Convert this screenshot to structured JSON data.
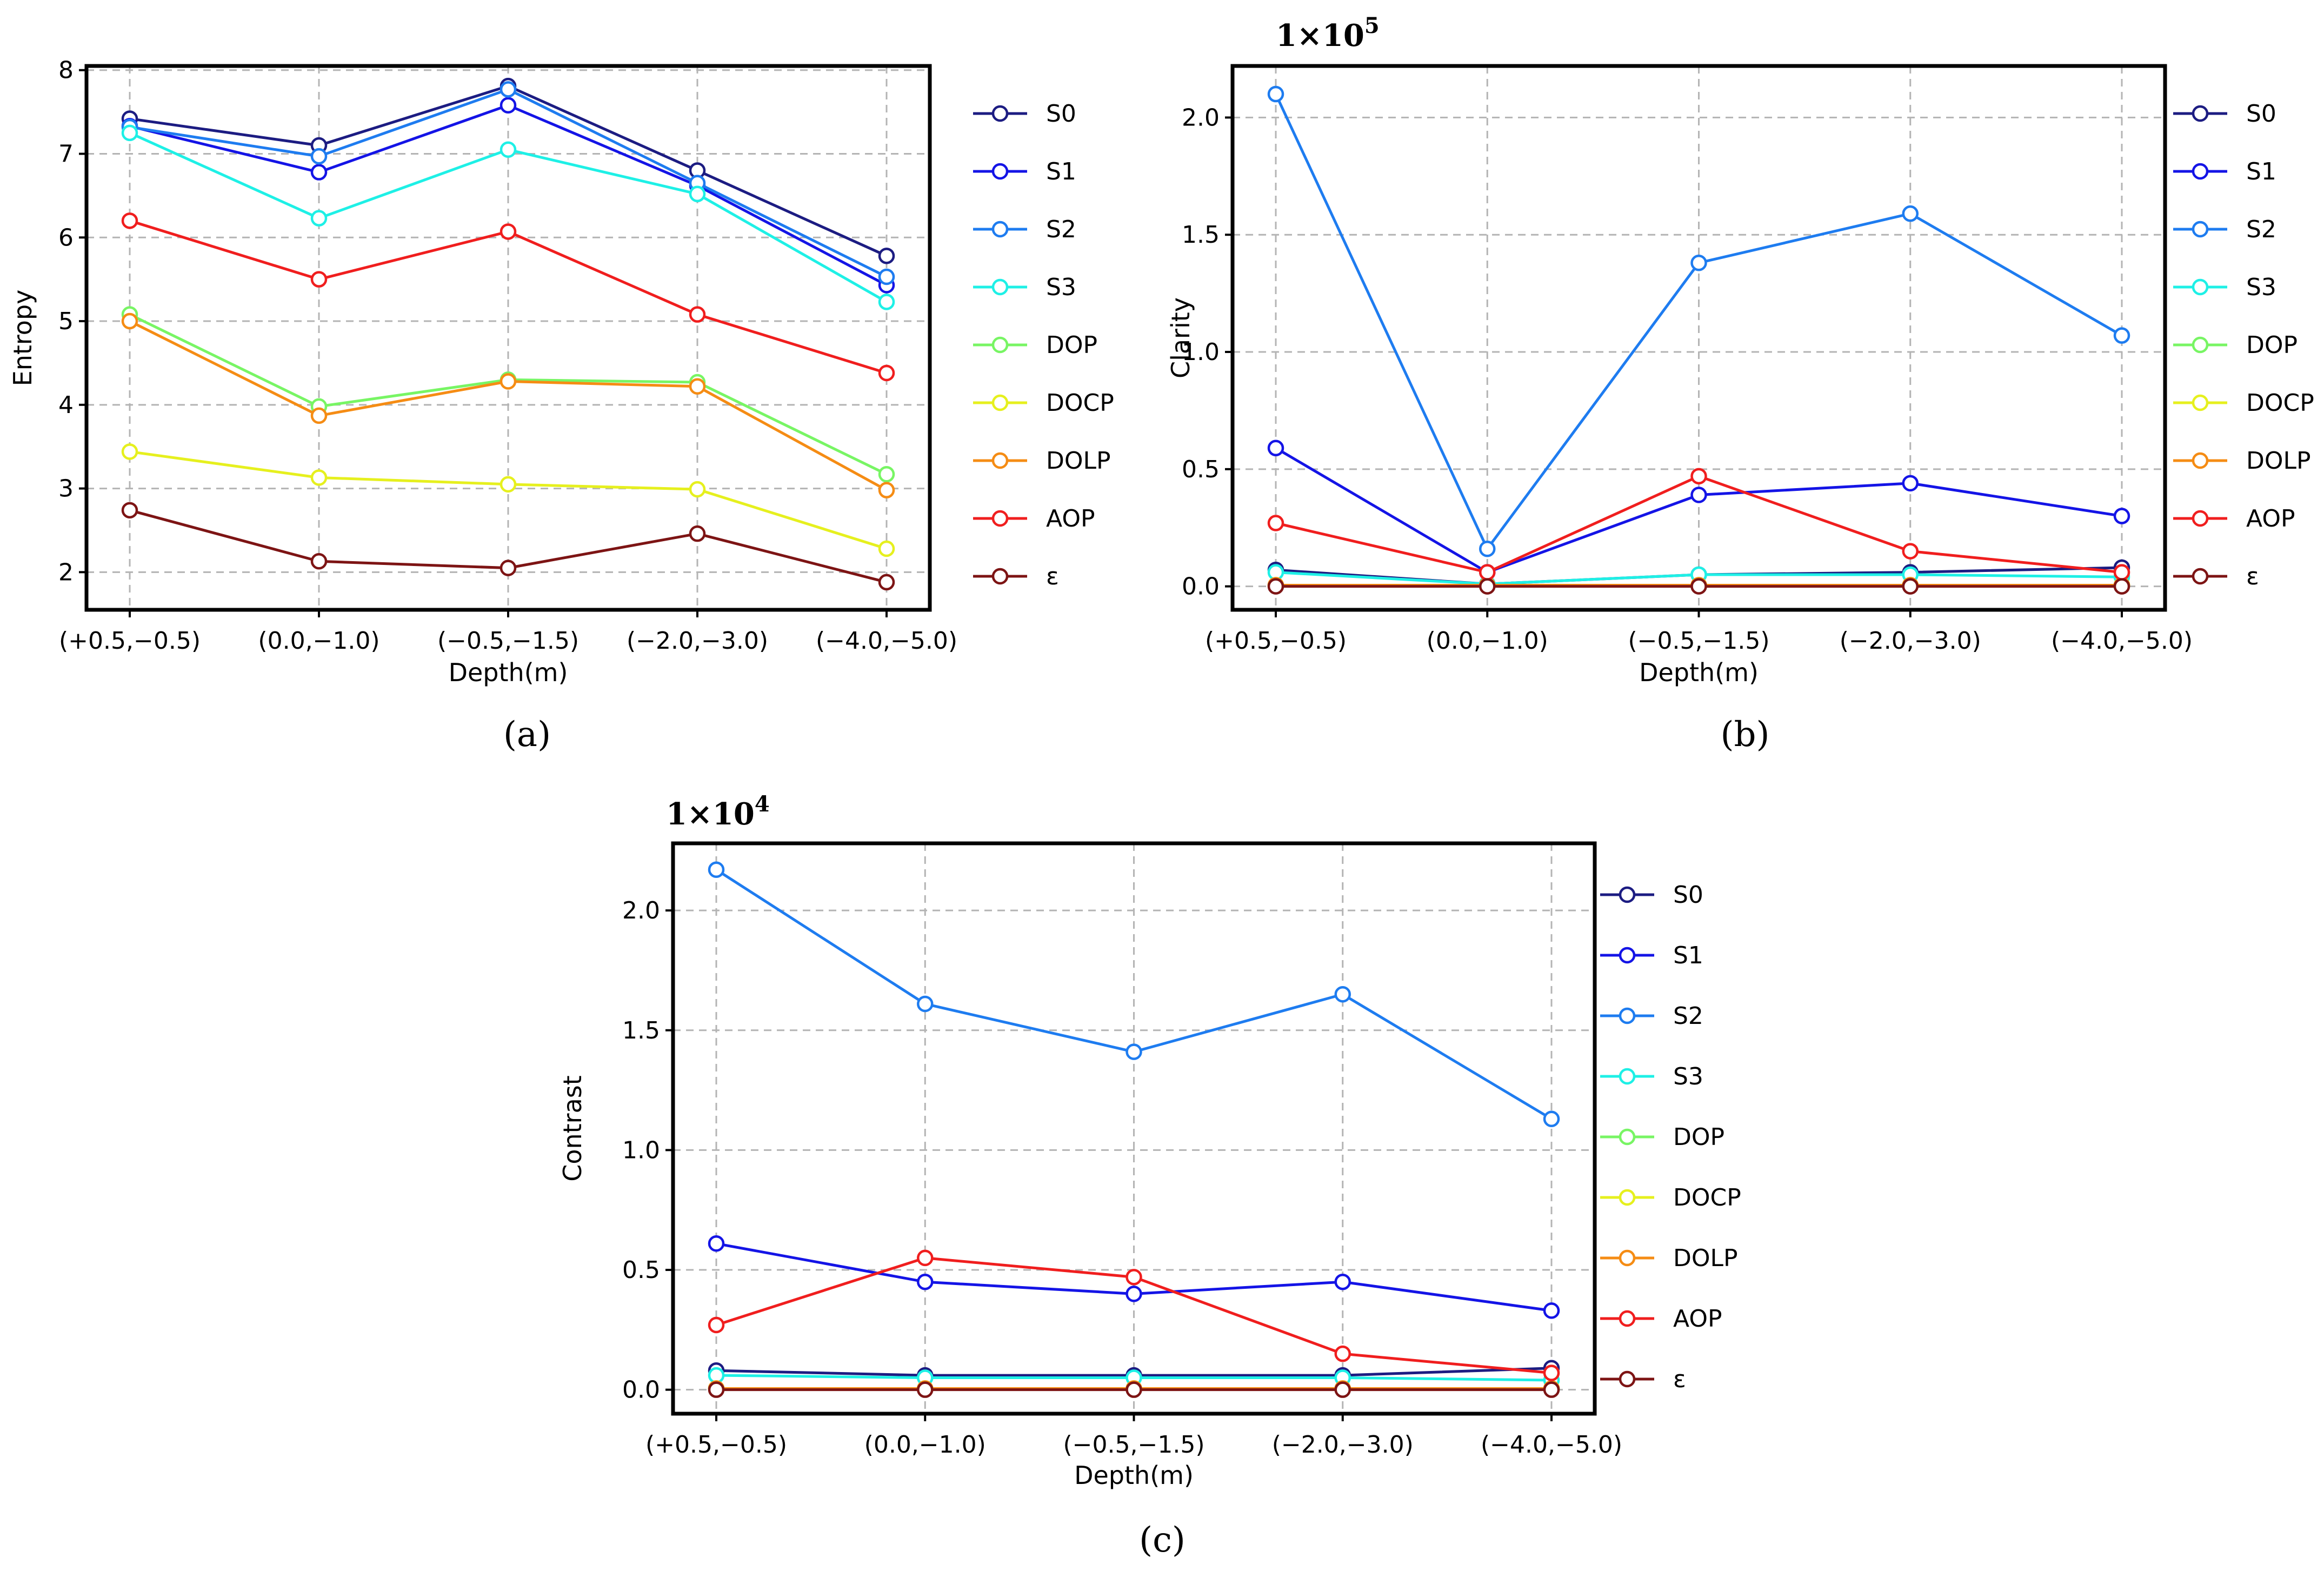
{
  "colors": {
    "S0": "#1c1c82",
    "S1": "#1414e6",
    "S2": "#1e7cf0",
    "S3": "#1ef0e6",
    "DOP": "#78f564",
    "DOCP": "#e6f01e",
    "DOLP": "#f58c14",
    "AOP": "#f01e1e",
    "eps": "#7d1414"
  },
  "chart_data": [
    {
      "id": "a",
      "type": "line",
      "sub_label": "(a)",
      "ylabel": "Entropy",
      "xlabel": "Depth(m)",
      "multiplier": "",
      "multiplier_exp": "",
      "categories": [
        "(+0.5,−0.5)",
        "(0.0,−1.0)",
        "(−0.5,−1.5)",
        "(−2.0,−3.0)",
        "(−4.0,−5.0)"
      ],
      "ylim": [
        1.55,
        8.05
      ],
      "yticks": [
        2,
        3,
        4,
        5,
        6,
        7,
        8
      ],
      "ytick_labels": [
        "2",
        "3",
        "4",
        "5",
        "6",
        "7",
        "8"
      ],
      "grid": true,
      "legend": "right",
      "series": [
        {
          "name": "S0",
          "key": "S0",
          "values": [
            7.42,
            7.1,
            7.81,
            6.8,
            5.78
          ]
        },
        {
          "name": "S1",
          "key": "S1",
          "values": [
            7.33,
            6.78,
            7.58,
            6.62,
            5.43
          ]
        },
        {
          "name": "S2",
          "key": "S2",
          "values": [
            7.32,
            6.97,
            7.77,
            6.65,
            5.53
          ]
        },
        {
          "name": "S3",
          "key": "S3",
          "values": [
            7.25,
            6.23,
            7.05,
            6.52,
            5.23
          ]
        },
        {
          "name": "DOP",
          "key": "DOP",
          "values": [
            5.08,
            3.98,
            4.3,
            4.27,
            3.17
          ]
        },
        {
          "name": "DOCP",
          "key": "DOCP",
          "values": [
            3.44,
            3.13,
            3.05,
            2.99,
            2.28
          ]
        },
        {
          "name": "DOLP",
          "key": "DOLP",
          "values": [
            5.0,
            3.87,
            4.28,
            4.22,
            2.98
          ]
        },
        {
          "name": "AOP",
          "key": "AOP",
          "values": [
            6.2,
            5.5,
            6.07,
            5.08,
            4.38
          ]
        },
        {
          "name": "ε",
          "key": "eps",
          "values": [
            2.74,
            2.13,
            2.05,
            2.46,
            1.88
          ]
        }
      ]
    },
    {
      "id": "b",
      "type": "line",
      "sub_label": "(b)",
      "ylabel": "Clarity",
      "xlabel": "Depth(m)",
      "multiplier": "1×10",
      "multiplier_exp": "5",
      "categories": [
        "(+0.5,−0.5)",
        "(0.0,−1.0)",
        "(−0.5,−1.5)",
        "(−2.0,−3.0)",
        "(−4.0,−5.0)"
      ],
      "ylim": [
        -0.1,
        2.22
      ],
      "yticks": [
        0.0,
        0.5,
        1.0,
        1.5,
        2.0
      ],
      "ytick_labels": [
        "0.0",
        "0.5",
        "1.0",
        "1.5",
        "2.0"
      ],
      "grid": true,
      "legend": "right",
      "series": [
        {
          "name": "S0",
          "key": "S0",
          "values": [
            0.07,
            0.01,
            0.05,
            0.06,
            0.08
          ]
        },
        {
          "name": "S1",
          "key": "S1",
          "values": [
            0.59,
            0.06,
            0.39,
            0.44,
            0.3
          ]
        },
        {
          "name": "S2",
          "key": "S2",
          "values": [
            2.1,
            0.16,
            1.38,
            1.59,
            1.07
          ]
        },
        {
          "name": "S3",
          "key": "S3",
          "values": [
            0.06,
            0.01,
            0.05,
            0.05,
            0.04
          ]
        },
        {
          "name": "DOP",
          "key": "DOP",
          "values": [
            0.005,
            0.005,
            0.005,
            0.005,
            0.005
          ]
        },
        {
          "name": "DOCP",
          "key": "DOCP",
          "values": [
            0.005,
            0.005,
            0.005,
            0.005,
            0.005
          ]
        },
        {
          "name": "DOLP",
          "key": "DOLP",
          "values": [
            0.005,
            0.005,
            0.005,
            0.005,
            0.005
          ]
        },
        {
          "name": "AOP",
          "key": "AOP",
          "values": [
            0.27,
            0.06,
            0.47,
            0.15,
            0.06
          ]
        },
        {
          "name": "ε",
          "key": "eps",
          "values": [
            0.0,
            0.0,
            0.0,
            0.0,
            0.0
          ]
        }
      ]
    },
    {
      "id": "c",
      "type": "line",
      "sub_label": "(c)",
      "ylabel": "Contrast",
      "xlabel": "Depth(m)",
      "multiplier": "1×10",
      "multiplier_exp": "4",
      "categories": [
        "(+0.5,−0.5)",
        "(0.0,−1.0)",
        "(−0.5,−1.5)",
        "(−2.0,−3.0)",
        "(−4.0,−5.0)"
      ],
      "ylim": [
        -0.1,
        2.28
      ],
      "yticks": [
        0.0,
        0.5,
        1.0,
        1.5,
        2.0
      ],
      "ytick_labels": [
        "0.0",
        "0.5",
        "1.0",
        "1.5",
        "2.0"
      ],
      "grid": true,
      "legend": "right",
      "series": [
        {
          "name": "S0",
          "key": "S0",
          "values": [
            0.08,
            0.06,
            0.06,
            0.06,
            0.09
          ]
        },
        {
          "name": "S1",
          "key": "S1",
          "values": [
            0.61,
            0.45,
            0.4,
            0.45,
            0.33
          ]
        },
        {
          "name": "S2",
          "key": "S2",
          "values": [
            2.17,
            1.61,
            1.41,
            1.65,
            1.13
          ]
        },
        {
          "name": "S3",
          "key": "S3",
          "values": [
            0.06,
            0.05,
            0.05,
            0.05,
            0.04
          ]
        },
        {
          "name": "DOP",
          "key": "DOP",
          "values": [
            0.005,
            0.005,
            0.005,
            0.005,
            0.005
          ]
        },
        {
          "name": "DOCP",
          "key": "DOCP",
          "values": [
            0.005,
            0.005,
            0.005,
            0.005,
            0.005
          ]
        },
        {
          "name": "DOLP",
          "key": "DOLP",
          "values": [
            0.005,
            0.005,
            0.005,
            0.005,
            0.005
          ]
        },
        {
          "name": "AOP",
          "key": "AOP",
          "values": [
            0.27,
            0.55,
            0.47,
            0.15,
            0.07
          ]
        },
        {
          "name": "ε",
          "key": "eps",
          "values": [
            0.0,
            0.0,
            0.0,
            0.0,
            0.0
          ]
        }
      ]
    }
  ]
}
